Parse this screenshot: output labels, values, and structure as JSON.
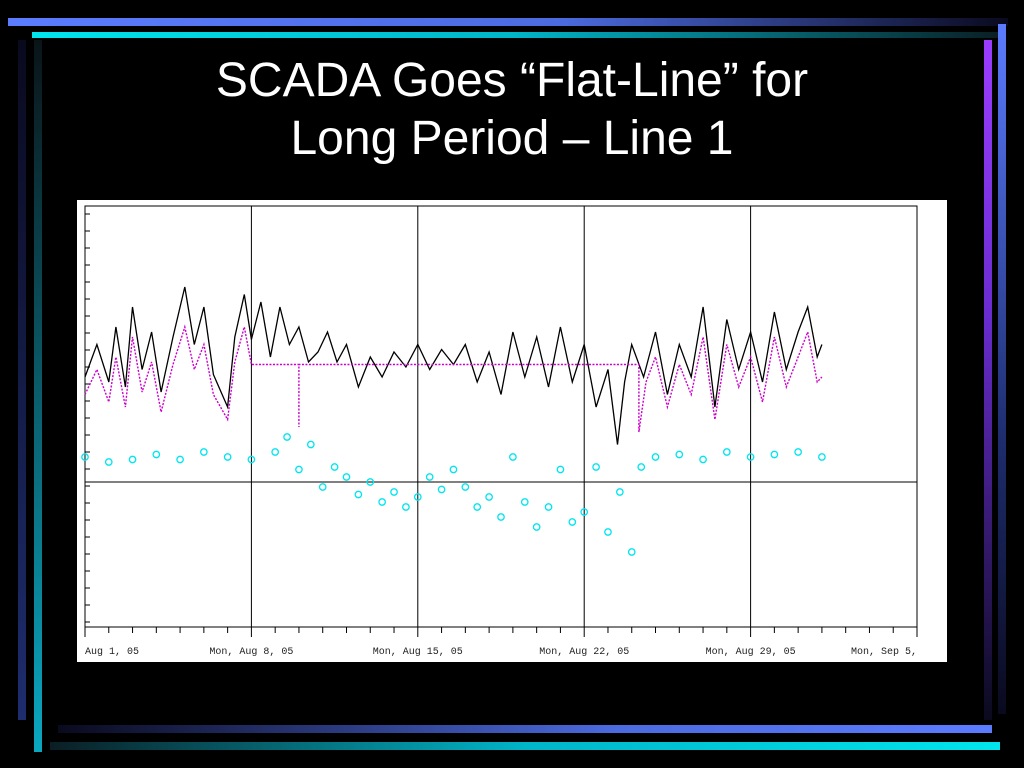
{
  "slide": {
    "title_line1": "SCADA Goes “Flat-Line” for",
    "title_line2": "Long Period – Line 1"
  },
  "colors": {
    "background": "#000000",
    "plot_background": "#ffffff",
    "series_black": "#000000",
    "series_magenta": "#cc00cc",
    "series_cyan": "#00e5ee"
  },
  "chart_data": {
    "type": "line",
    "title": "",
    "xlabel": "",
    "ylabel": "",
    "grid": "vertical lines at weekly ticks",
    "x_tick_labels": [
      "Aug 1, 05",
      "Mon, Aug 8, 05",
      "Mon, Aug 15, 05",
      "Mon, Aug 22, 05",
      "Mon, Aug 29, 05",
      "Mon, Sep 5,"
    ],
    "x_tick_days": [
      0,
      7,
      14,
      21,
      28,
      35
    ],
    "x_range_days": [
      0,
      35
    ],
    "series": [
      {
        "style": "line",
        "color": "#000000",
        "points": [
          [
            0,
            0.42
          ],
          [
            0.5,
            0.55
          ],
          [
            1,
            0.4
          ],
          [
            1.3,
            0.62
          ],
          [
            1.7,
            0.38
          ],
          [
            2,
            0.7
          ],
          [
            2.4,
            0.45
          ],
          [
            2.8,
            0.6
          ],
          [
            3.2,
            0.36
          ],
          [
            3.7,
            0.58
          ],
          [
            4.2,
            0.78
          ],
          [
            4.6,
            0.55
          ],
          [
            5,
            0.7
          ],
          [
            5.4,
            0.43
          ],
          [
            6,
            0.3
          ],
          [
            6.3,
            0.58
          ],
          [
            6.7,
            0.75
          ],
          [
            7,
            0.57
          ],
          [
            7.4,
            0.72
          ],
          [
            7.8,
            0.5
          ],
          [
            8.2,
            0.7
          ],
          [
            8.6,
            0.55
          ],
          [
            9,
            0.62
          ],
          [
            9.4,
            0.48
          ],
          [
            9.8,
            0.52
          ],
          [
            10.2,
            0.6
          ],
          [
            10.6,
            0.48
          ],
          [
            11,
            0.55
          ],
          [
            11.5,
            0.38
          ],
          [
            12,
            0.5
          ],
          [
            12.5,
            0.42
          ],
          [
            13,
            0.52
          ],
          [
            13.5,
            0.46
          ],
          [
            14,
            0.55
          ],
          [
            14.5,
            0.45
          ],
          [
            15,
            0.53
          ],
          [
            15.5,
            0.47
          ],
          [
            16,
            0.55
          ],
          [
            16.5,
            0.4
          ],
          [
            17,
            0.52
          ],
          [
            17.5,
            0.35
          ],
          [
            18,
            0.6
          ],
          [
            18.5,
            0.42
          ],
          [
            19,
            0.58
          ],
          [
            19.5,
            0.38
          ],
          [
            20,
            0.62
          ],
          [
            20.5,
            0.4
          ],
          [
            21,
            0.55
          ],
          [
            21.5,
            0.3
          ],
          [
            22,
            0.45
          ],
          [
            22.4,
            0.15
          ],
          [
            22.7,
            0.4
          ],
          [
            23,
            0.55
          ],
          [
            23.5,
            0.42
          ],
          [
            24,
            0.6
          ],
          [
            24.5,
            0.35
          ],
          [
            25,
            0.55
          ],
          [
            25.5,
            0.42
          ],
          [
            26,
            0.7
          ],
          [
            26.5,
            0.3
          ],
          [
            27,
            0.65
          ],
          [
            27.5,
            0.45
          ],
          [
            28,
            0.6
          ],
          [
            28.5,
            0.4
          ],
          [
            29,
            0.68
          ],
          [
            29.5,
            0.45
          ],
          [
            30,
            0.6
          ],
          [
            30.4,
            0.7
          ],
          [
            30.8,
            0.5
          ],
          [
            31,
            0.55
          ]
        ]
      },
      {
        "style": "dotted-line",
        "color": "#cc00cc",
        "points": [
          [
            0,
            0.35
          ],
          [
            0.5,
            0.45
          ],
          [
            1,
            0.32
          ],
          [
            1.3,
            0.5
          ],
          [
            1.7,
            0.3
          ],
          [
            2,
            0.58
          ],
          [
            2.4,
            0.36
          ],
          [
            2.8,
            0.48
          ],
          [
            3.2,
            0.28
          ],
          [
            3.7,
            0.47
          ],
          [
            4.2,
            0.62
          ],
          [
            4.6,
            0.45
          ],
          [
            5,
            0.55
          ],
          [
            5.4,
            0.35
          ],
          [
            6,
            0.25
          ],
          [
            6.3,
            0.48
          ],
          [
            6.7,
            0.62
          ],
          [
            7,
            0.47
          ],
          [
            7.2,
            0.47
          ],
          [
            9,
            0.47
          ],
          [
            9,
            0.36
          ],
          [
            9,
            0.22
          ],
          [
            9,
            0.47
          ],
          [
            14,
            0.47
          ],
          [
            19,
            0.47
          ],
          [
            23.3,
            0.47
          ],
          [
            23.3,
            0.2
          ],
          [
            23.6,
            0.4
          ],
          [
            24,
            0.5
          ],
          [
            24.5,
            0.3
          ],
          [
            25,
            0.47
          ],
          [
            25.5,
            0.35
          ],
          [
            26,
            0.58
          ],
          [
            26.5,
            0.25
          ],
          [
            27,
            0.55
          ],
          [
            27.5,
            0.38
          ],
          [
            28,
            0.5
          ],
          [
            28.5,
            0.32
          ],
          [
            29,
            0.58
          ],
          [
            29.5,
            0.38
          ],
          [
            30,
            0.5
          ],
          [
            30.4,
            0.6
          ],
          [
            30.8,
            0.4
          ],
          [
            31,
            0.42
          ]
        ]
      },
      {
        "style": "scatter",
        "color": "#00e5ee",
        "points": [
          [
            0,
            0.1
          ],
          [
            1,
            0.08
          ],
          [
            2,
            0.09
          ],
          [
            3,
            0.11
          ],
          [
            4,
            0.09
          ],
          [
            5,
            0.12
          ],
          [
            6,
            0.1
          ],
          [
            7,
            0.09
          ],
          [
            8,
            0.12
          ],
          [
            8.5,
            0.18
          ],
          [
            9,
            0.05
          ],
          [
            9.5,
            0.15
          ],
          [
            10,
            -0.02
          ],
          [
            10.5,
            0.06
          ],
          [
            11,
            0.02
          ],
          [
            11.5,
            -0.05
          ],
          [
            12,
            0.0
          ],
          [
            12.5,
            -0.08
          ],
          [
            13,
            -0.04
          ],
          [
            13.5,
            -0.1
          ],
          [
            14,
            -0.06
          ],
          [
            14.5,
            0.02
          ],
          [
            15,
            -0.03
          ],
          [
            15.5,
            0.05
          ],
          [
            16,
            -0.02
          ],
          [
            16.5,
            -0.1
          ],
          [
            17,
            -0.06
          ],
          [
            17.5,
            -0.14
          ],
          [
            18,
            0.1
          ],
          [
            18.5,
            -0.08
          ],
          [
            19,
            -0.18
          ],
          [
            19.5,
            -0.1
          ],
          [
            20,
            0.05
          ],
          [
            20.5,
            -0.16
          ],
          [
            21,
            -0.12
          ],
          [
            21.5,
            0.06
          ],
          [
            22,
            -0.2
          ],
          [
            22.5,
            -0.04
          ],
          [
            23,
            -0.28
          ],
          [
            23.4,
            0.06
          ],
          [
            24,
            0.1
          ],
          [
            25,
            0.11
          ],
          [
            26,
            0.09
          ],
          [
            27,
            0.12
          ],
          [
            28,
            0.1
          ],
          [
            29,
            0.11
          ],
          [
            30,
            0.12
          ],
          [
            31,
            0.1
          ]
        ]
      }
    ]
  }
}
